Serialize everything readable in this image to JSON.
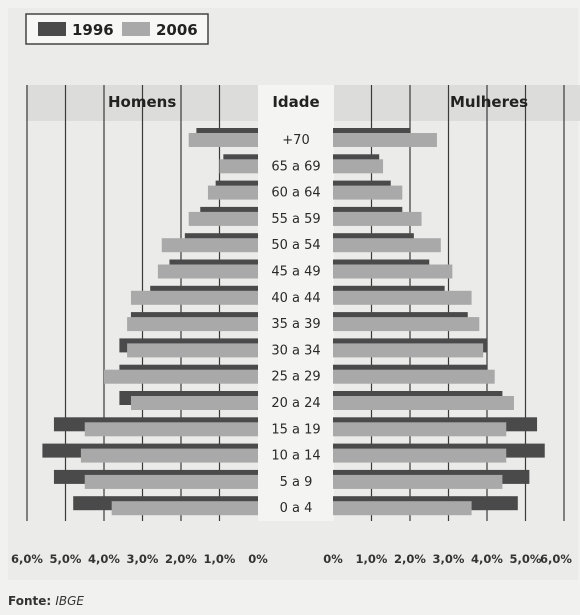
{
  "chart_data": {
    "type": "bar",
    "legend": [
      {
        "name": "1996",
        "color": "#4a4a4a"
      },
      {
        "name": "2006",
        "color": "#a9a9a9"
      }
    ],
    "left_label": "Homens",
    "center_label": "Idade",
    "right_label": "Mulheres",
    "categories": [
      "+70",
      "65 a 69",
      "60 a 64",
      "55 a 59",
      "50 a 54",
      "45 a 49",
      "40 a 44",
      "35 a 39",
      "30 a 34",
      "25 a 29",
      "20 a 24",
      "15 a 19",
      "10 a 14",
      "5 a 9",
      "0 a 4"
    ],
    "series": [
      {
        "name": "1996",
        "men": [
          1.6,
          0.9,
          1.1,
          1.5,
          1.9,
          2.3,
          2.8,
          3.3,
          3.6,
          3.6,
          3.6,
          5.3,
          5.6,
          5.3,
          4.8
        ],
        "women": [
          2.0,
          1.2,
          1.5,
          1.8,
          2.1,
          2.5,
          2.9,
          3.5,
          4.0,
          4.0,
          4.4,
          5.3,
          5.5,
          5.1,
          4.8
        ]
      },
      {
        "name": "2006",
        "men": [
          1.8,
          1.0,
          1.3,
          1.8,
          2.5,
          2.6,
          3.3,
          3.4,
          3.4,
          4.0,
          3.3,
          4.5,
          4.6,
          4.5,
          3.8
        ],
        "women": [
          2.7,
          1.3,
          1.8,
          2.3,
          2.8,
          3.1,
          3.6,
          3.8,
          3.9,
          4.2,
          4.7,
          4.5,
          4.5,
          4.4,
          3.6
        ]
      }
    ],
    "men_ticks": [
      "6,0%",
      "5,0%",
      "4,0%",
      "3,0%",
      "2,0%",
      "1,0%",
      "0%"
    ],
    "women_ticks": [
      "0%",
      "1,0%",
      "2,0%",
      "3,0%",
      "4,0%",
      "5,0%",
      "6,0%"
    ],
    "xlim": [
      0,
      6
    ],
    "grid": true
  },
  "source": {
    "label": "Fonte:",
    "name": "IBGE"
  }
}
